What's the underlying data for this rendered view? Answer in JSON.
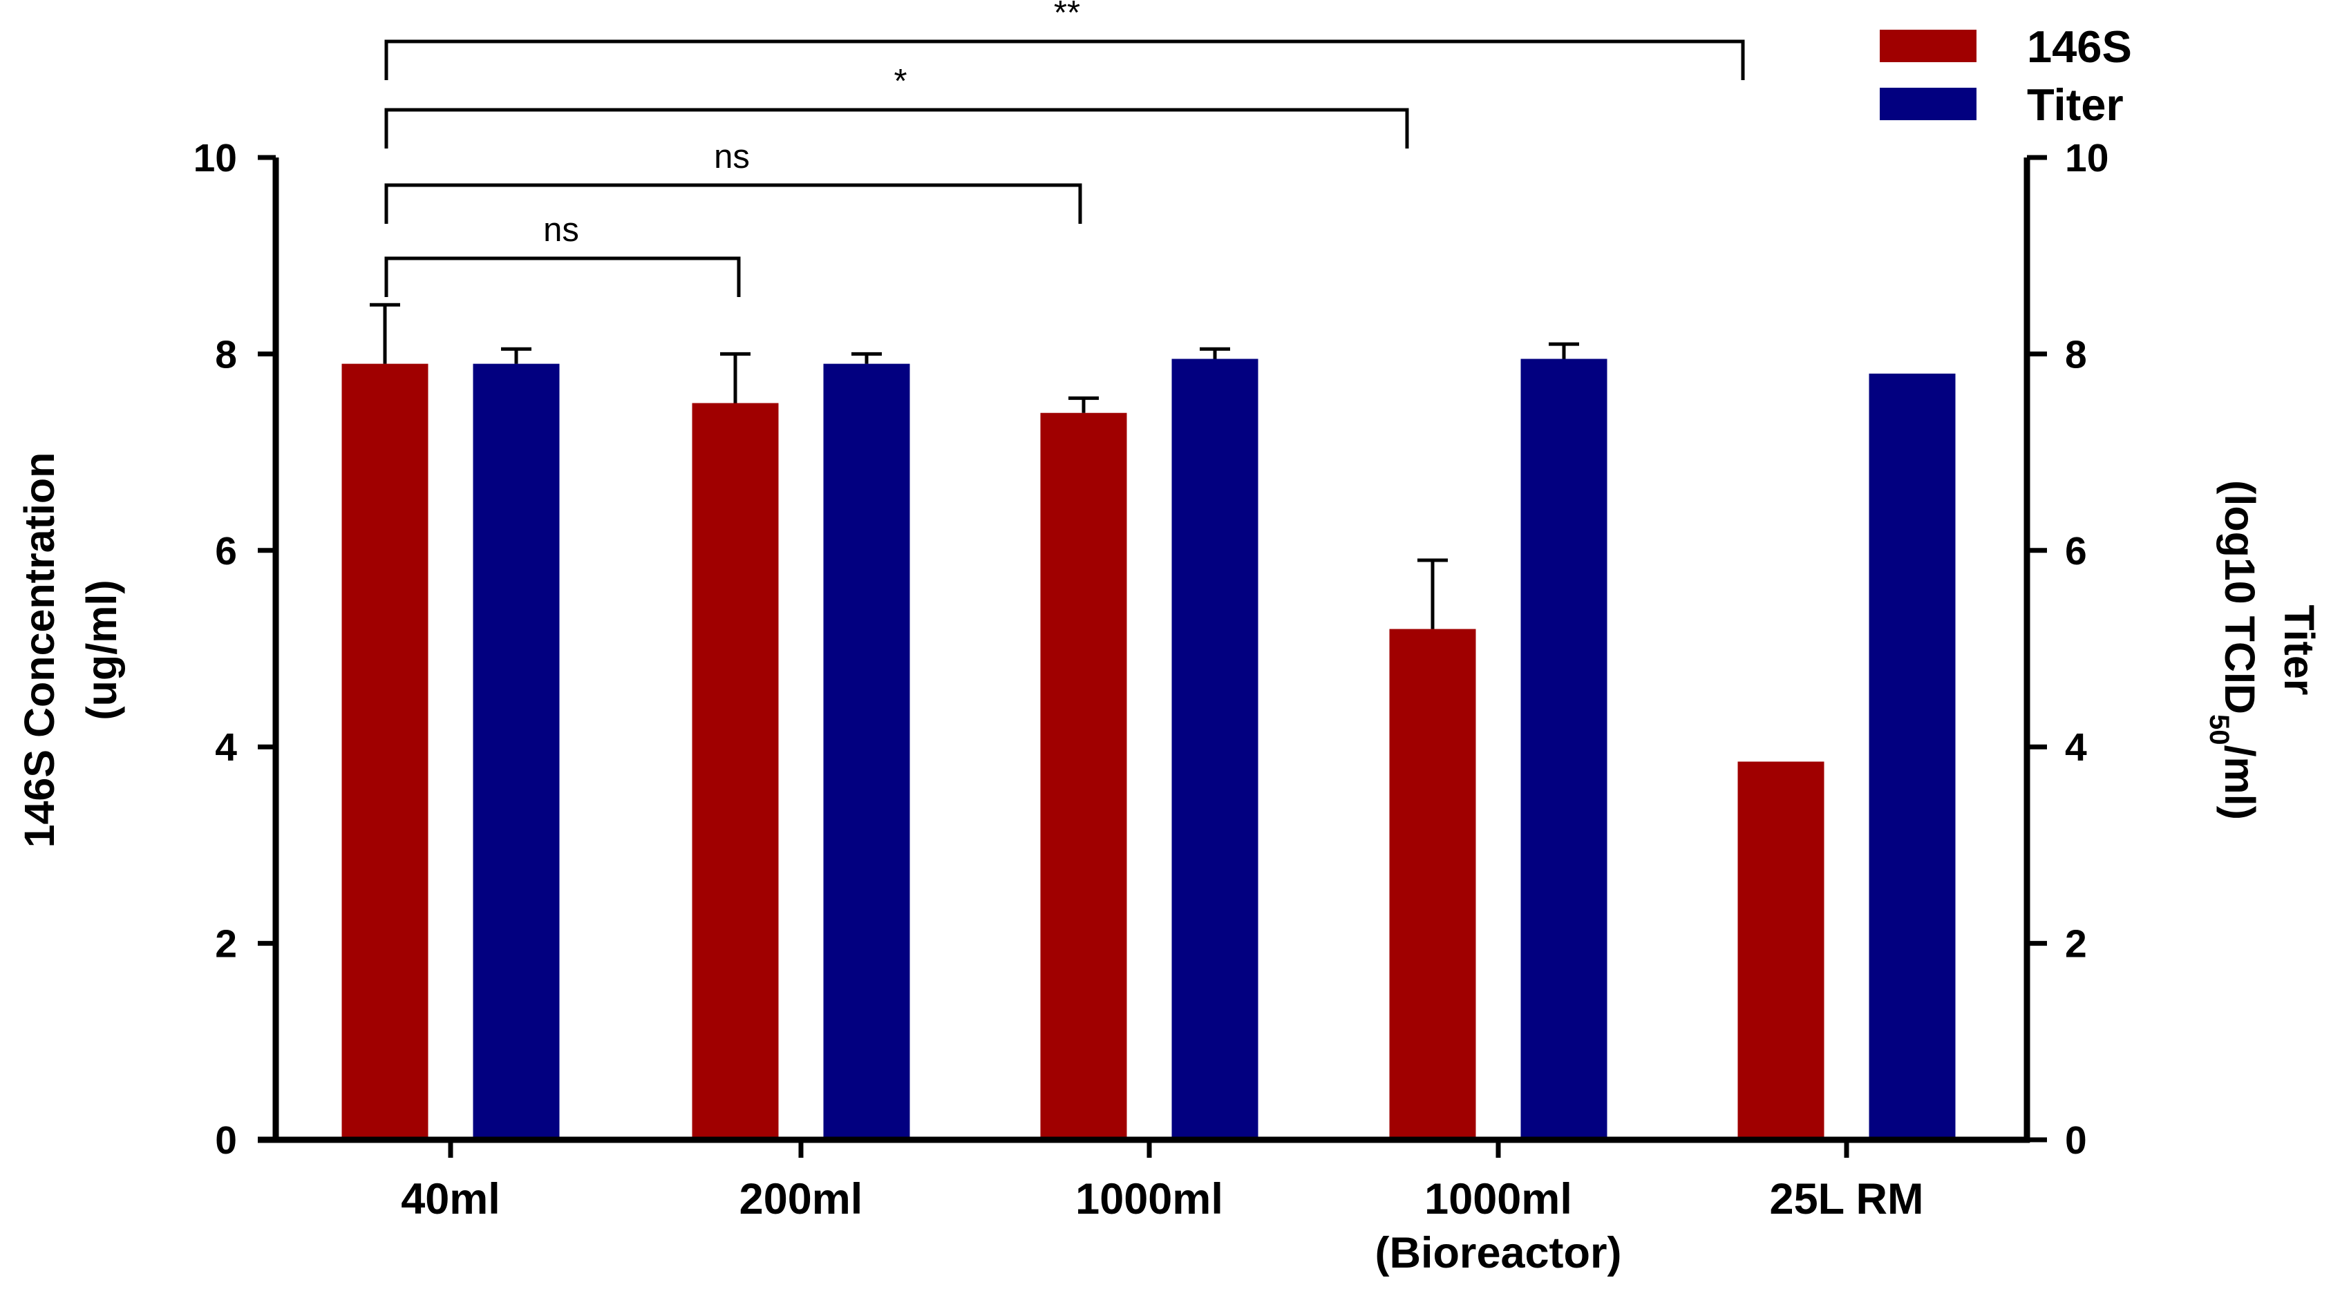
{
  "chart_data": {
    "type": "bar",
    "categories": [
      {
        "line1": "40ml",
        "line2": ""
      },
      {
        "line1": "200ml",
        "line2": ""
      },
      {
        "line1": "1000ml",
        "line2": ""
      },
      {
        "line1": "1000ml",
        "line2": "(Bioreactor)"
      },
      {
        "line1": "25L RM",
        "line2": ""
      }
    ],
    "series": [
      {
        "name": "146S",
        "axis": "left",
        "color": "#a00000",
        "values": [
          7.9,
          7.5,
          7.4,
          5.2,
          3.85
        ],
        "errors": [
          0.6,
          0.5,
          0.15,
          0.7,
          null
        ]
      },
      {
        "name": "Titer",
        "axis": "right",
        "color": "#020080",
        "values": [
          7.9,
          7.9,
          7.95,
          7.95,
          7.8
        ],
        "errors": [
          0.15,
          0.1,
          0.1,
          0.15,
          null
        ]
      }
    ],
    "left_axis": {
      "title_line1": "146S Concentration",
      "title_line2": "(ug/ml)",
      "ylim": [
        0,
        10
      ],
      "ticks": [
        "0",
        "2",
        "4",
        "6",
        "8",
        "10"
      ]
    },
    "right_axis": {
      "title_line1": "Titer",
      "title_line2_pre": "(log10 TCID",
      "title_line2_sub": "50",
      "title_line2_post": "/ml)",
      "ylim": [
        0,
        10
      ],
      "ticks": [
        "0",
        "2",
        "4",
        "6",
        "8",
        "10"
      ]
    },
    "significance": [
      {
        "from": 0,
        "to": 1,
        "label": "ns"
      },
      {
        "from": 0,
        "to": 2,
        "label": "ns"
      },
      {
        "from": 0,
        "to": 3,
        "label": "*"
      },
      {
        "from": 0,
        "to": 4,
        "label": "**"
      }
    ],
    "legend": {
      "placement": "top-right",
      "entries": [
        "146S",
        "Titer"
      ]
    }
  }
}
